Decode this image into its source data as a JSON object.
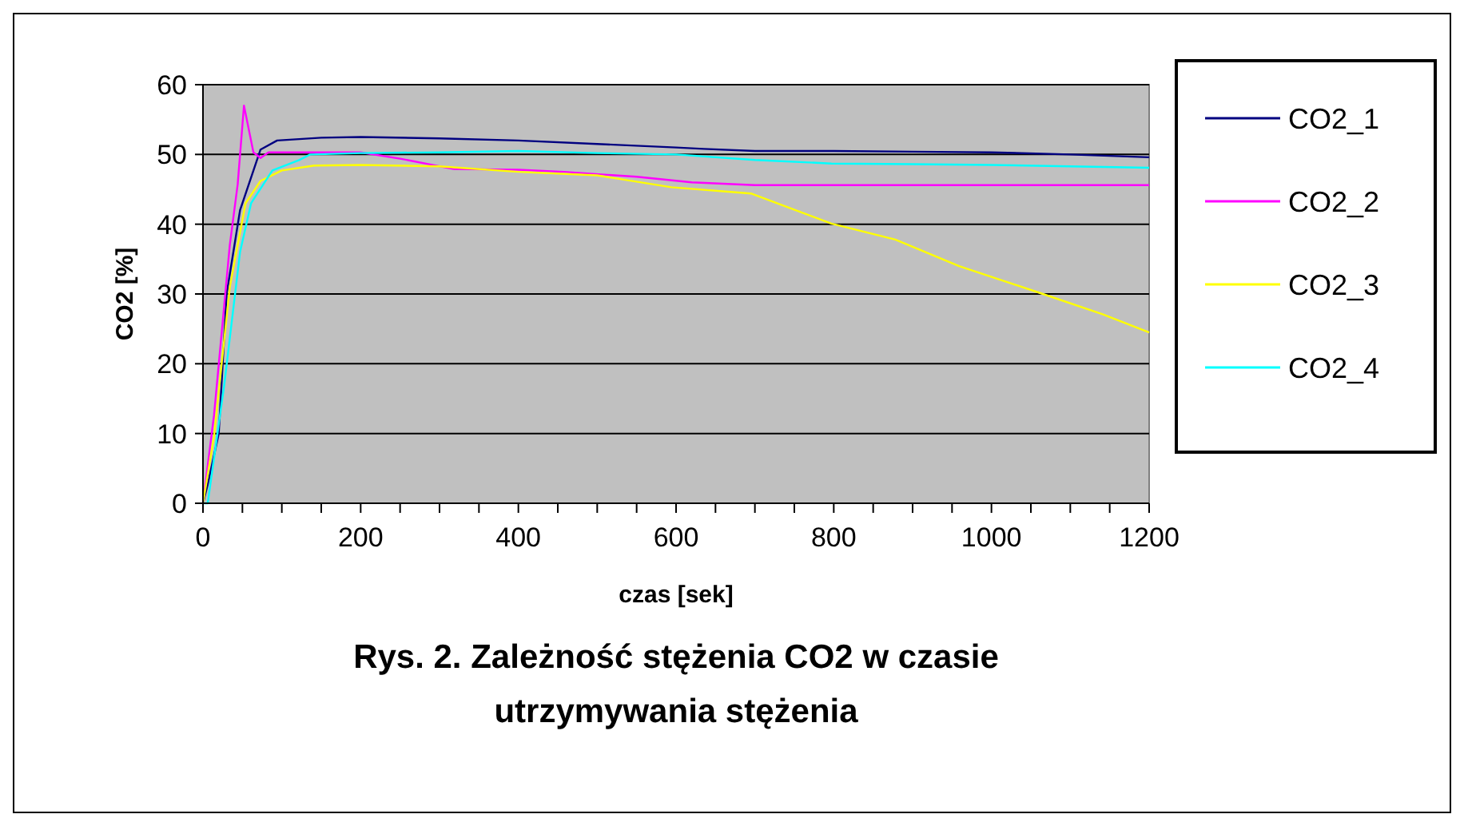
{
  "chart_data": {
    "type": "line",
    "title": "Rys. 2. Zależność stężenia CO2 w czasie utrzymywania stężenia",
    "xlabel": "czas [sek]",
    "ylabel": "CO2 [%]",
    "xlim": [
      0,
      1200
    ],
    "xticks": [
      0,
      200,
      400,
      600,
      800,
      1000,
      1200
    ],
    "ylim": [
      0,
      60
    ],
    "yticks": [
      0,
      10,
      20,
      30,
      40,
      50,
      60
    ],
    "grid": "y",
    "legend": "right",
    "marker": "none",
    "line_style": "solid",
    "series": [
      {
        "name": "CO2_1",
        "color": "#000080",
        "x": [
          0,
          6,
          20,
          30,
          47,
          73,
          94,
          150,
          200,
          300,
          400,
          500,
          600,
          635,
          700,
          800,
          900,
          1000,
          1100,
          1200
        ],
        "values": [
          0,
          2.7,
          10,
          30,
          42,
          50.7,
          52,
          52.4,
          52.5,
          52.3,
          52,
          51.5,
          51,
          50.8,
          50.5,
          50.5,
          50.4,
          50.3,
          50,
          49.6
        ]
      },
      {
        "name": "CO2_2",
        "color": "#ff00ff",
        "x": [
          0,
          14,
          34,
          44,
          52,
          64,
          73,
          83,
          120,
          200,
          250,
          318,
          400,
          458,
          550,
          620,
          700,
          800,
          900,
          1000,
          1100,
          1200
        ],
        "values": [
          0,
          12.6,
          37,
          45.7,
          57,
          50.3,
          49.5,
          50.3,
          50.3,
          50.3,
          49.4,
          47.9,
          47.8,
          47.5,
          46.8,
          46,
          45.6,
          45.6,
          45.6,
          45.6,
          45.6,
          45.6
        ]
      },
      {
        "name": "CO2_3",
        "color": "#ffff00",
        "x": [
          0,
          14,
          34,
          54,
          73,
          100,
          141,
          200,
          300,
          400,
          500,
          594,
          695,
          797,
          878,
          959,
          1060,
          1141,
          1200
        ],
        "values": [
          0,
          9.6,
          31,
          43,
          46.2,
          47.7,
          48.4,
          48.5,
          48.3,
          47.5,
          47,
          45.3,
          44.4,
          40.1,
          37.8,
          34,
          30.2,
          27.1,
          24.5
        ]
      },
      {
        "name": "CO2_4",
        "color": "#00ffff",
        "x": [
          0,
          6,
          27,
          47,
          61,
          88,
          122,
          136,
          200,
          300,
          400,
          500,
          600,
          700,
          797,
          900,
          1000,
          1100,
          1200
        ],
        "values": [
          0,
          0,
          17,
          36,
          43,
          47.7,
          49.2,
          50,
          50.2,
          50.3,
          50.5,
          50.2,
          50,
          49.2,
          48.7,
          48.6,
          48.5,
          48.3,
          48.1
        ]
      }
    ]
  }
}
